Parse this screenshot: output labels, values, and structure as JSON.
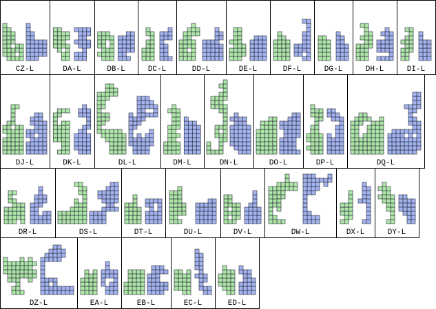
{
  "rows": [
    [
      "CZ-L",
      "DA-L",
      "DB-L",
      "DC-L",
      "DD-L",
      "DE-L",
      "DF-L",
      "DG-L",
      "DH-L",
      "DI-L"
    ],
    [
      "DJ-L",
      "DK-L",
      "DL-L",
      "DM-L",
      "DN-L",
      "DO-L",
      "DP-L",
      "DQ-L"
    ],
    [
      "DR-L",
      "DS-L",
      "DT-L",
      "DU-L",
      "DV-L",
      "DW-L",
      "DX-L",
      "DY-L"
    ],
    [
      "DZ-L",
      "EA-L",
      "EB-L",
      "EC-L",
      "ED-L"
    ]
  ]
}
